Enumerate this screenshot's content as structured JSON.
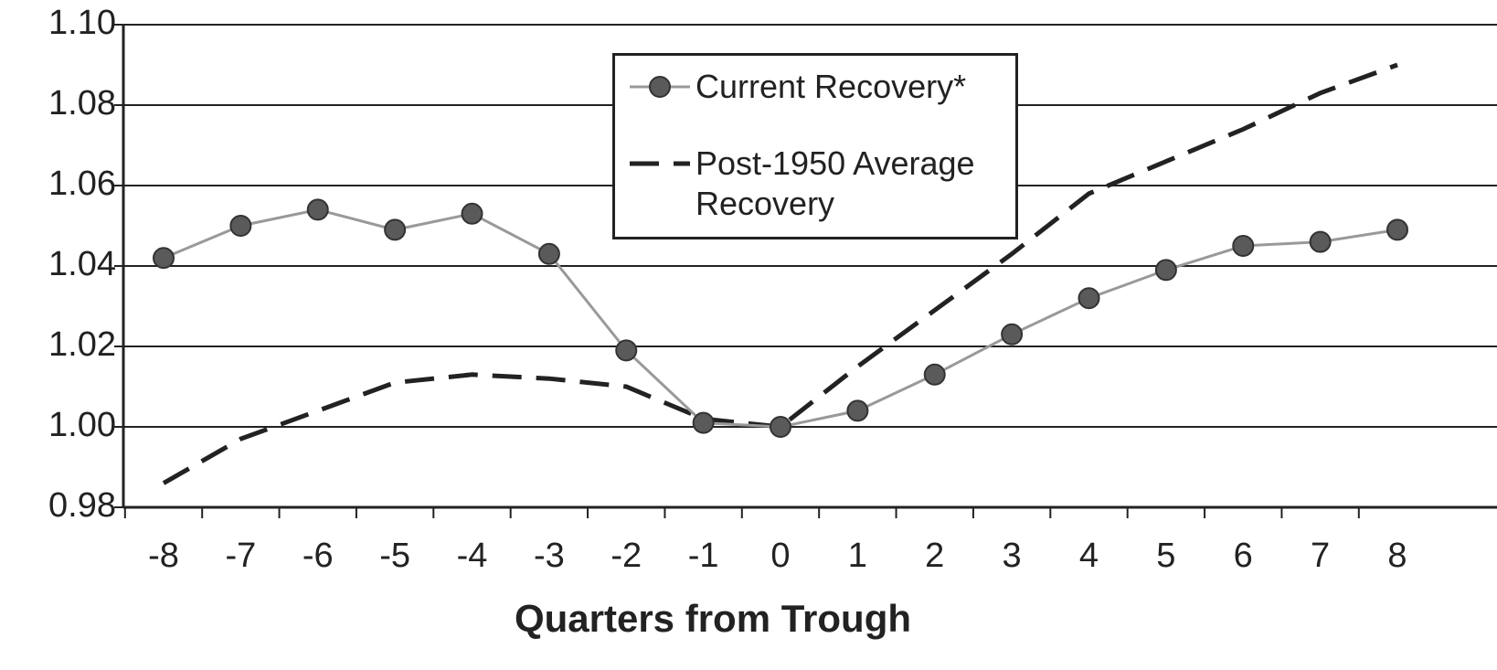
{
  "chart_data": {
    "type": "line",
    "x_label": "Quarters from Trough",
    "categories": [
      "-8",
      "-7",
      "-6",
      "-5",
      "-4",
      "-3",
      "-2",
      "-1",
      "0",
      "1",
      "2",
      "3",
      "4",
      "5",
      "6",
      "7",
      "8"
    ],
    "series": [
      {
        "name": "Current Recovery*",
        "color": "#999999",
        "marker_color": "#5a5a5a",
        "marker": true,
        "dashed": false,
        "values": [
          1.042,
          1.05,
          1.054,
          1.049,
          1.053,
          1.043,
          1.019,
          1.001,
          1.0,
          1.004,
          1.013,
          1.023,
          1.032,
          1.039,
          1.045,
          1.046,
          1.049
        ]
      },
      {
        "name": "Post-1950 Average Recovery",
        "color": "#222222",
        "marker": false,
        "dashed": true,
        "values": [
          0.986,
          0.997,
          1.004,
          1.011,
          1.013,
          1.012,
          1.01,
          1.002,
          1.0,
          1.015,
          1.029,
          1.043,
          1.058,
          1.066,
          1.074,
          1.083,
          1.09
        ]
      }
    ],
    "ylim": [
      0.98,
      1.1
    ],
    "yticks": [
      0.98,
      1.02,
      1.04,
      1.06,
      1.08,
      {
        "value": 1.0,
        "label": "1.00"
      },
      {
        "value": 1.1,
        "label": "1.10"
      }
    ],
    "grid": true,
    "legend": "top"
  }
}
